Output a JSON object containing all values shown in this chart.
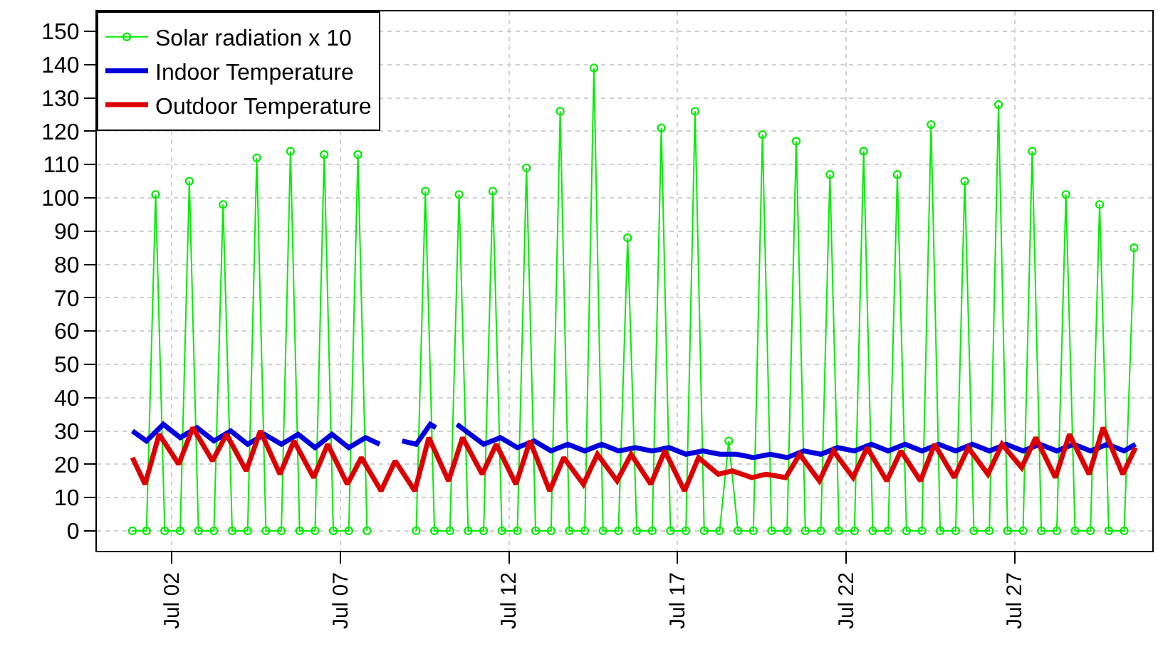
{
  "chart_data": {
    "type": "line",
    "legend": "top left",
    "grid": true,
    "ylim": [
      -6,
      156
    ],
    "yticks": [
      0,
      10,
      20,
      30,
      40,
      50,
      60,
      70,
      80,
      90,
      100,
      110,
      120,
      130,
      140,
      150
    ],
    "xlim": [
      "--06-29T18:40",
      "--07-31T02:00"
    ],
    "xticks": [
      {
        "value": "--07-02",
        "label": "Jul 02"
      },
      {
        "value": "--07-07",
        "label": "Jul 07"
      },
      {
        "value": "--07-12",
        "label": "Jul 12"
      },
      {
        "value": "--07-17",
        "label": "Jul 17"
      },
      {
        "value": "--07-22",
        "label": "Jul 22"
      },
      {
        "value": "--07-27",
        "label": "Jul 27"
      }
    ],
    "series": [
      {
        "name": "Solar radiation x 10",
        "color": "#00ee00",
        "marker": "circle",
        "line_style": "solid",
        "x": [
          "--06-30T20:00",
          "--07-01T06:00",
          "--07-01T12:30",
          "--07-01T19:00",
          "--07-02T06:00",
          "--07-02T12:30",
          "--07-02T19:00",
          "--07-03T06:00",
          "--07-03T12:30",
          "--07-03T19:00",
          "--07-04T06:00",
          "--07-04T12:30",
          "--07-04T19:00",
          "--07-05T06:00",
          "--07-05T12:30",
          "--07-05T19:00",
          "--07-06T06:00",
          "--07-06T12:30",
          "--07-06T19:00",
          "--07-07T06:00",
          "--07-07T12:30",
          "--07-07T19:00",
          "--07-08T06:00",
          "--07-08T12:30",
          "--07-08T19:00",
          "--07-09T06:00",
          "--07-09T12:30",
          "--07-09T19:00",
          "--07-10T06:00",
          "--07-10T12:30",
          "--07-10T19:00",
          "--07-11T06:00",
          "--07-11T12:30",
          "--07-11T19:00",
          "--07-12T06:00",
          "--07-12T12:30",
          "--07-12T19:00",
          "--07-13T06:00",
          "--07-13T12:30",
          "--07-13T19:00",
          "--07-14T06:00",
          "--07-14T12:30",
          "--07-14T19:00",
          "--07-15T06:00",
          "--07-15T12:30",
          "--07-15T19:00",
          "--07-16T06:00",
          "--07-16T12:30",
          "--07-16T19:00",
          "--07-17T06:00",
          "--07-17T12:30",
          "--07-17T19:00",
          "--07-18T06:00",
          "--07-18T12:30",
          "--07-18T19:00",
          "--07-19T06:00",
          "--07-19T12:30",
          "--07-19T19:00",
          "--07-20T06:00",
          "--07-20T12:30",
          "--07-20T19:00",
          "--07-21T06:00",
          "--07-21T12:30",
          "--07-21T19:00",
          "--07-22T06:00",
          "--07-22T12:30",
          "--07-22T19:00",
          "--07-23T06:00",
          "--07-23T12:30",
          "--07-23T19:00",
          "--07-24T06:00",
          "--07-24T12:30",
          "--07-24T19:00",
          "--07-25T06:00",
          "--07-25T12:30",
          "--07-25T19:00",
          "--07-26T06:00",
          "--07-26T12:30",
          "--07-26T19:00",
          "--07-27T06:00",
          "--07-27T12:30",
          "--07-27T19:00",
          "--07-28T06:00",
          "--07-28T12:30",
          "--07-28T19:00",
          "--07-29T06:00",
          "--07-29T12:30",
          "--07-29T19:00",
          "--07-30T06:00",
          "--07-30T13:00"
        ],
        "values": [
          0,
          0,
          101,
          0,
          0,
          105,
          0,
          0,
          98,
          0,
          0,
          112,
          0,
          0,
          114,
          0,
          0,
          113,
          0,
          0,
          113,
          0,
          null,
          null,
          null,
          0,
          102,
          0,
          0,
          101,
          0,
          0,
          102,
          0,
          0,
          109,
          0,
          0,
          126,
          0,
          0,
          139,
          0,
          0,
          88,
          0,
          0,
          121,
          0,
          0,
          126,
          0,
          0,
          27,
          0,
          0,
          119,
          0,
          0,
          117,
          0,
          0,
          107,
          0,
          0,
          114,
          0,
          0,
          107,
          0,
          0,
          122,
          0,
          0,
          105,
          0,
          0,
          128,
          0,
          0,
          114,
          0,
          0,
          101,
          0,
          0,
          98,
          0,
          0,
          85
        ]
      },
      {
        "name": "Indoor Temperature",
        "color": "#0000dd",
        "marker": "none",
        "line_style": "solid",
        "x": [
          "--06-30T20:00",
          "--07-01T06:00",
          "--07-01T18:00",
          "--07-02T06:00",
          "--07-02T18:00",
          "--07-03T06:00",
          "--07-03T18:00",
          "--07-04T06:00",
          "--07-04T18:00",
          "--07-05T06:00",
          "--07-05T18:00",
          "--07-06T06:00",
          "--07-06T18:00",
          "--07-07T06:00",
          "--07-07T18:00",
          "--07-08T04:00",
          "--07-08T08:00",
          "--07-08T20:00",
          "--07-09T06:00",
          "--07-09T16:00",
          "--07-09T20:00",
          "--07-10T00:00",
          "--07-10T11:00",
          "--07-11T06:00",
          "--07-11T18:00",
          "--07-12T06:00",
          "--07-12T18:00",
          "--07-13T06:00",
          "--07-13T18:00",
          "--07-14T06:00",
          "--07-14T18:00",
          "--07-15T06:00",
          "--07-15T18:00",
          "--07-16T06:00",
          "--07-16T18:00",
          "--07-17T06:00",
          "--07-17T18:00",
          "--07-18T06:00",
          "--07-18T18:00",
          "--07-19T06:00",
          "--07-19T18:00",
          "--07-20T06:00",
          "--07-20T18:00",
          "--07-21T06:00",
          "--07-21T18:00",
          "--07-22T06:00",
          "--07-22T18:00",
          "--07-23T06:00",
          "--07-23T18:00",
          "--07-24T06:00",
          "--07-24T18:00",
          "--07-25T06:00",
          "--07-25T18:00",
          "--07-26T06:00",
          "--07-26T18:00",
          "--07-27T06:00",
          "--07-27T18:00",
          "--07-28T06:00",
          "--07-28T18:00",
          "--07-29T06:00",
          "--07-29T18:00",
          "--07-30T06:00",
          "--07-30T14:00"
        ],
        "values": [
          30,
          27,
          32,
          28,
          31,
          27,
          30,
          26,
          29,
          26,
          29,
          25,
          29,
          25,
          28,
          26,
          null,
          27,
          26,
          32,
          31,
          null,
          32,
          26,
          28,
          25,
          27,
          24,
          26,
          24,
          26,
          24,
          25,
          24,
          25,
          23,
          24,
          23,
          23,
          22,
          23,
          22,
          24,
          23,
          25,
          24,
          26,
          24,
          26,
          24,
          26,
          24,
          26,
          24,
          26,
          24,
          26,
          24,
          26,
          24,
          26,
          24,
          26
        ]
      },
      {
        "name": "Outdoor Temperature",
        "color": "#dd0000",
        "marker": "none",
        "line_style": "solid",
        "x": [
          "--06-30T20:00",
          "--07-01T05:00",
          "--07-01T15:00",
          "--07-02T05:00",
          "--07-02T15:00",
          "--07-03T05:00",
          "--07-03T15:00",
          "--07-04T05:00",
          "--07-04T15:00",
          "--07-05T05:00",
          "--07-05T15:00",
          "--07-06T05:00",
          "--07-06T15:00",
          "--07-07T05:00",
          "--07-07T15:00",
          "--07-08T05:00",
          "--07-08T15:00",
          "--07-09T05:00",
          "--07-09T15:00",
          "--07-10T05:00",
          "--07-10T15:00",
          "--07-11T05:00",
          "--07-11T15:00",
          "--07-12T05:00",
          "--07-12T15:00",
          "--07-13T05:00",
          "--07-13T15:00",
          "--07-14T05:00",
          "--07-14T15:00",
          "--07-15T05:00",
          "--07-15T15:00",
          "--07-16T05:00",
          "--07-16T15:00",
          "--07-17T05:00",
          "--07-17T15:00",
          "--07-18T05:00",
          "--07-18T15:00",
          "--07-19T05:00",
          "--07-19T15:00",
          "--07-20T05:00",
          "--07-20T15:00",
          "--07-21T05:00",
          "--07-21T15:00",
          "--07-22T05:00",
          "--07-22T15:00",
          "--07-23T05:00",
          "--07-23T15:00",
          "--07-24T05:00",
          "--07-24T15:00",
          "--07-25T05:00",
          "--07-25T15:00",
          "--07-26T05:00",
          "--07-26T15:00",
          "--07-27T05:00",
          "--07-27T15:00",
          "--07-28T05:00",
          "--07-28T15:00",
          "--07-29T05:00",
          "--07-29T15:00",
          "--07-30T05:00",
          "--07-30T14:00"
        ],
        "values": [
          22,
          14,
          29,
          20,
          31,
          21,
          29,
          18,
          30,
          17,
          27,
          16,
          26,
          14,
          22,
          12,
          21,
          12,
          28,
          15,
          28,
          17,
          26,
          14,
          27,
          12,
          22,
          14,
          23,
          15,
          23,
          14,
          24,
          12,
          22,
          17,
          18,
          16,
          17,
          16,
          23,
          15,
          24,
          16,
          25,
          15,
          24,
          15,
          26,
          16,
          25,
          17,
          26,
          19,
          28,
          16,
          29,
          17,
          31,
          17,
          25
        ]
      }
    ]
  }
}
